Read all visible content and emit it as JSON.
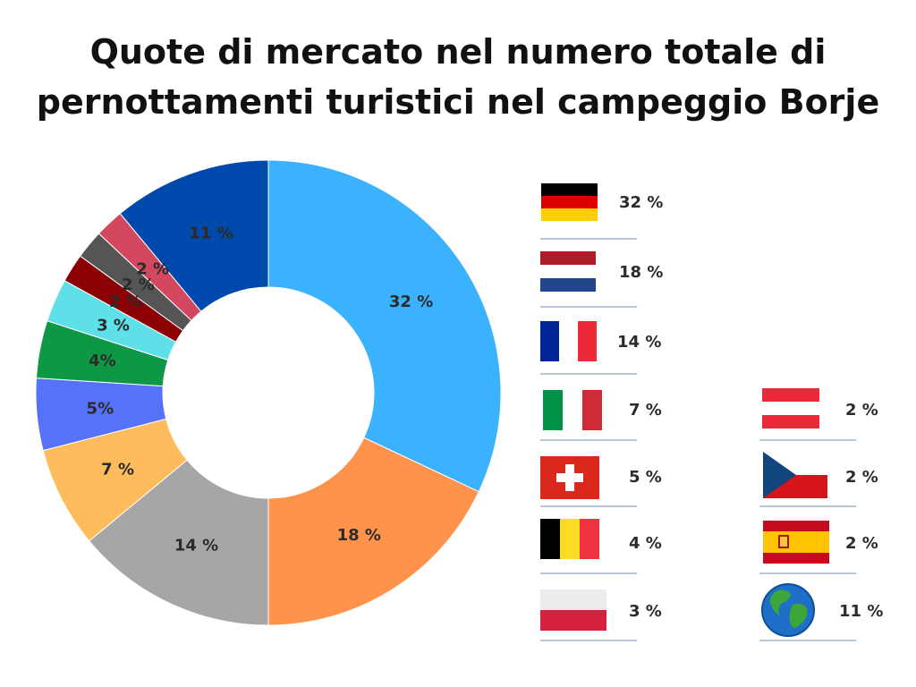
{
  "title_lines": [
    "Quote di mercato nel numero totale di",
    "pernottamenti turistici nel campeggio Borje"
  ],
  "chart_data": {
    "type": "pie",
    "style": "donut",
    "series": [
      {
        "values": [
          32,
          18,
          14,
          7,
          5,
          4,
          3,
          2,
          2,
          2,
          11
        ],
        "labels": [
          "32 %",
          "18 %",
          "14 %",
          "7 %",
          "5%",
          "4%",
          "3 %",
          "2 %",
          "2 %",
          "2 %",
          "11 %"
        ],
        "colors": [
          "#3bb2fd",
          "#ff934c",
          "#a6a6a6",
          "#ffbc5c",
          "#5672f7",
          "#0e9845",
          "#5fe0e8",
          "#8c0003",
          "#555555",
          "#d3485e",
          "#0049ac"
        ]
      }
    ],
    "legend": [
      {
        "flag": "germany-flag",
        "value": "32 %"
      },
      {
        "flag": "netherlands-flag",
        "value": "18 %"
      },
      {
        "flag": "france-flag",
        "value": "14 %"
      },
      {
        "flag": "italy-flag",
        "value": "7 %"
      },
      {
        "flag": "switzerland-flag",
        "value": "5 %"
      },
      {
        "flag": "belgium-flag",
        "value": "4 %"
      },
      {
        "flag": "poland-flag",
        "value": "3 %"
      },
      {
        "flag": "austria-flag",
        "value": "2 %"
      },
      {
        "flag": "czech-republic-flag",
        "value": "2 %"
      },
      {
        "flag": "spain-flag",
        "value": "2 %"
      },
      {
        "flag": "globe-icon",
        "value": "11 %"
      }
    ]
  }
}
